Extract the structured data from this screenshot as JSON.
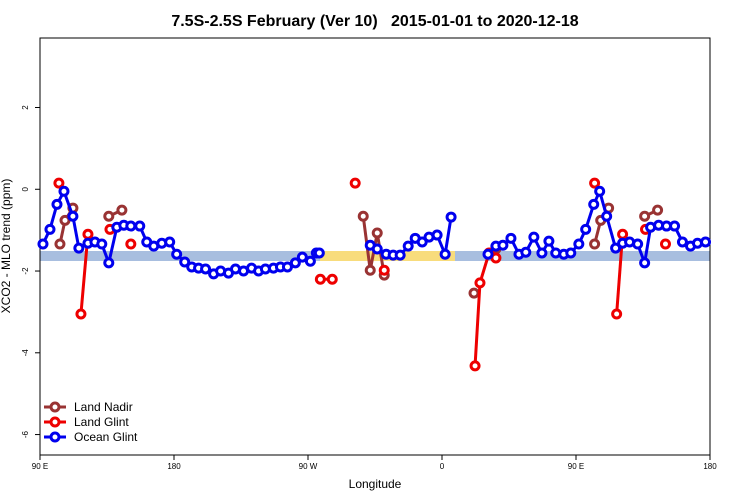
{
  "chart_data": {
    "type": "line",
    "title": "7.5S-2.5S February (Ver 10)   2015-01-01 to 2020-12-18",
    "x_label": "Longitude",
    "y_label": "XCO2 - MLO trend (ppm)",
    "xlim": [
      90,
      540
    ],
    "ylim": [
      -6.5,
      3.7
    ],
    "xticks": [
      {
        "value": 90,
        "label": "90 E"
      },
      180,
      {
        "value": 270,
        "label": "90 W"
      },
      {
        "value": 360,
        "label": "0"
      },
      {
        "value": 450,
        "label": "90 E"
      },
      {
        "value": 540,
        "label": "180"
      }
    ],
    "yticks": [
      -6,
      -4,
      -2,
      0,
      2
    ],
    "legend": "bottom-left",
    "series": [
      {
        "name": "Land Nadir",
        "color": "#993333",
        "x": [
          103.4,
          106.8,
          112.1,
          null,
          136.2,
          145.0,
          null,
          307.1,
          311.8,
          316.5,
          321.2,
          null,
          381.5,
          null,
          396.2,
          null,
          462.5,
          466.6,
          471.9,
          null,
          496.1,
          504.8
        ],
        "values": [
          -1.34,
          -0.76,
          -0.46,
          null,
          -0.66,
          -0.51,
          null,
          -0.66,
          -1.98,
          -1.07,
          -2.1,
          null,
          -2.54,
          null,
          -1.46,
          null,
          -1.34,
          -0.76,
          -0.46,
          null,
          -0.66,
          -0.51
        ]
      },
      {
        "name": "Land Glint",
        "color": "#ee0000",
        "x": [
          102.7,
          null,
          117.5,
          122.2,
          null,
          137.0,
          null,
          151.0,
          null,
          278.3,
          286.3,
          null,
          301.7,
          null,
          321.2,
          null,
          382.2,
          385.5,
          391.6,
          396.2,
          null,
          462.5,
          null,
          477.3,
          481.3,
          null,
          496.7,
          null,
          510.1
        ],
        "values": [
          0.15,
          null,
          -3.05,
          -1.1,
          null,
          -0.98,
          null,
          -1.34,
          null,
          -2.2,
          -2.2,
          null,
          0.15,
          null,
          -1.98,
          null,
          -4.32,
          -2.29,
          -1.56,
          -1.68,
          null,
          0.15,
          null,
          -3.05,
          -1.1,
          null,
          -0.98,
          null,
          -1.34
        ]
      },
      {
        "name": "Ocean Glint",
        "color": "#0000ee",
        "x": [
          92.0,
          96.7,
          101.4,
          106.1,
          112.1,
          116.1,
          122.2,
          126.9,
          131.5,
          136.2,
          141.6,
          146.3,
          151.0,
          157.0,
          161.7,
          166.4,
          171.8,
          177.1,
          181.8,
          187.2,
          191.9,
          196.5,
          201.2,
          206.6,
          211.3,
          216.6,
          221.3,
          226.7,
          232.1,
          236.8,
          241.4,
          246.8,
          251.5,
          256.2,
          261.5,
          266.2,
          271.6,
          275.6,
          277.6,
          null,
          311.8,
          316.5,
          322.5,
          327.2,
          331.9,
          337.3,
          342.0,
          346.7,
          351.3,
          356.7,
          362.1,
          366.1,
          null,
          390.9,
          396.2,
          400.9,
          406.3,
          411.7,
          416.3,
          421.7,
          427.1,
          431.8,
          436.4,
          441.8,
          446.5,
          451.9,
          456.5,
          461.9,
          465.9,
          470.6,
          476.6,
          481.3,
          486.0,
          491.4,
          496.1,
          500.1,
          505.5,
          510.8,
          516.2,
          521.5,
          526.9,
          531.6,
          537.0
        ],
        "values": [
          -1.34,
          -0.98,
          -0.37,
          -0.05,
          -0.66,
          -1.44,
          -1.32,
          -1.29,
          -1.34,
          -1.8,
          -0.93,
          -0.88,
          -0.9,
          -0.9,
          -1.29,
          -1.39,
          -1.32,
          -1.29,
          -1.59,
          -1.78,
          -1.9,
          -1.93,
          -1.95,
          -2.07,
          -2.0,
          -2.05,
          -1.95,
          -2.0,
          -1.93,
          -2.0,
          -1.95,
          -1.93,
          -1.9,
          -1.9,
          -1.8,
          -1.66,
          -1.76,
          -1.56,
          -1.56,
          null,
          -1.37,
          -1.46,
          -1.59,
          -1.61,
          -1.61,
          -1.39,
          -1.2,
          -1.29,
          -1.17,
          -1.12,
          -1.59,
          -0.68,
          null,
          -1.59,
          -1.39,
          -1.37,
          -1.2,
          -1.59,
          -1.54,
          -1.17,
          -1.56,
          -1.27,
          -1.56,
          -1.59,
          -1.56,
          -1.34,
          -0.98,
          -0.37,
          -0.05,
          -0.66,
          -1.44,
          -1.32,
          -1.29,
          -1.34,
          -1.8,
          -0.93,
          -0.88,
          -0.9,
          -0.9,
          -1.29,
          -1.39,
          -1.32,
          -1.29
        ]
      }
    ]
  }
}
